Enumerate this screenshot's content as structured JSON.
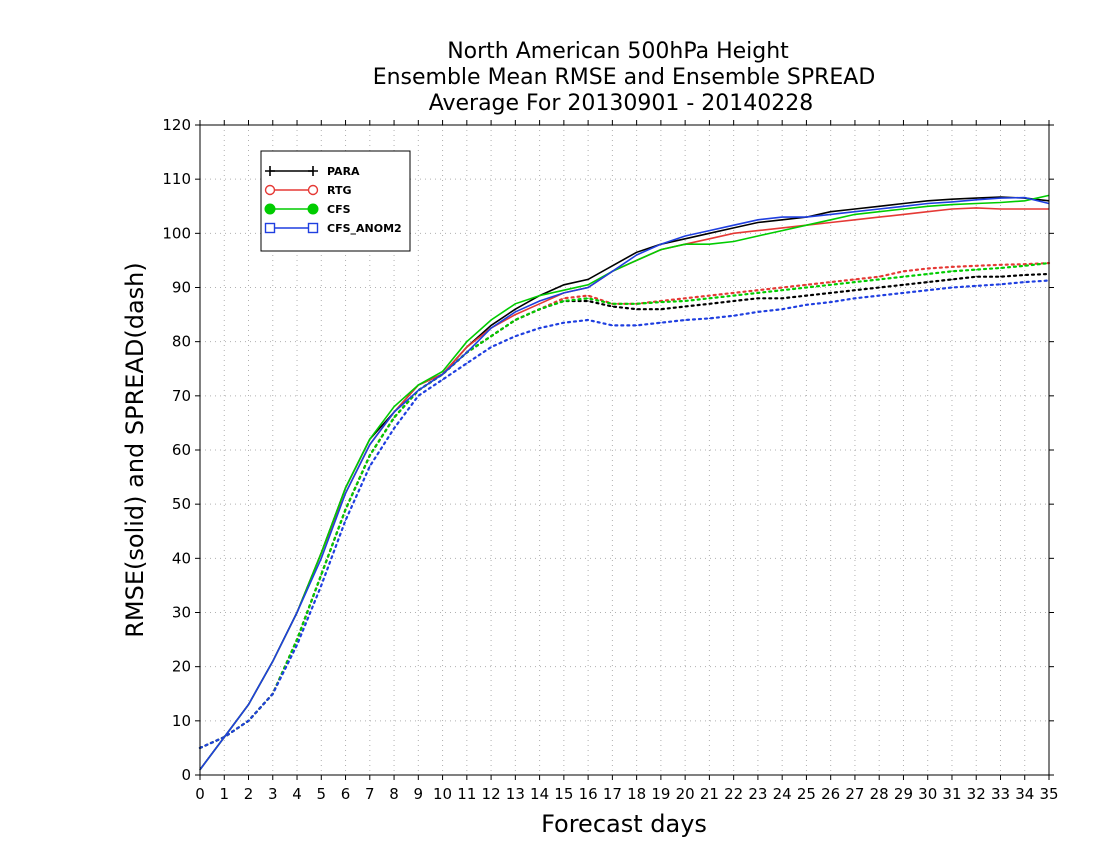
{
  "chart_data": {
    "type": "line",
    "title": [
      "North American 500hPa Height",
      "Ensemble Mean RMSE and Ensemble SPREAD",
      "Average For 20130901 - 20140228"
    ],
    "xlabel": "Forecast days",
    "ylabel": "RMSE(solid) and SPREAD(dash)",
    "xlim": [
      0,
      35
    ],
    "ylim": [
      0,
      120
    ],
    "xticks": [
      0,
      1,
      2,
      3,
      4,
      5,
      6,
      7,
      8,
      9,
      10,
      11,
      12,
      13,
      14,
      15,
      16,
      17,
      18,
      19,
      20,
      21,
      22,
      23,
      24,
      25,
      26,
      27,
      28,
      29,
      30,
      31,
      32,
      33,
      34,
      35
    ],
    "yticks": [
      0,
      10,
      20,
      30,
      40,
      50,
      60,
      70,
      80,
      90,
      100,
      110,
      120
    ],
    "grid": true,
    "legend_position": "top-left",
    "x": [
      0,
      1,
      2,
      3,
      4,
      5,
      6,
      7,
      8,
      9,
      10,
      11,
      12,
      13,
      14,
      15,
      16,
      17,
      18,
      19,
      20,
      21,
      22,
      23,
      24,
      25,
      26,
      27,
      28,
      29,
      30,
      31,
      32,
      33,
      34,
      35
    ],
    "series": [
      {
        "name": "PARA",
        "color": "#000000",
        "marker": "plus",
        "rmse": [
          1,
          7,
          13,
          21,
          30,
          41,
          53,
          62,
          67,
          72,
          74,
          79,
          83,
          86,
          88.5,
          90.5,
          91.5,
          94,
          96.5,
          98,
          99,
          100,
          101,
          102,
          102.5,
          103,
          104,
          104.5,
          105,
          105.5,
          106,
          106.3,
          106.5,
          106.7,
          106.5,
          106
        ],
        "spread": [
          5,
          7,
          10,
          15,
          25,
          37,
          49,
          59,
          66,
          71,
          74,
          78,
          81,
          84,
          86,
          87.5,
          87.5,
          86.5,
          86,
          86,
          86.5,
          87,
          87.5,
          88,
          88,
          88.5,
          89,
          89.5,
          90,
          90.5,
          91,
          91.5,
          92,
          92,
          92.3,
          92.5
        ]
      },
      {
        "name": "RTG",
        "color": "#e53935",
        "marker": "circle-open",
        "rmse": [
          1,
          7,
          13,
          21,
          30,
          41,
          52,
          61,
          67,
          72,
          74,
          79,
          82.5,
          85,
          87,
          89,
          90,
          93,
          95,
          97,
          98,
          99,
          100,
          100.5,
          101,
          101.5,
          102,
          102.5,
          103,
          103.5,
          104,
          104.5,
          104.7,
          104.5,
          104.5,
          104.5
        ],
        "spread": [
          5,
          7,
          10,
          15,
          25,
          37,
          49,
          59,
          66,
          71,
          74,
          78,
          81,
          84,
          86,
          88,
          88.5,
          87,
          87,
          87.5,
          88,
          88.5,
          89,
          89.5,
          90,
          90.5,
          91,
          91.5,
          92,
          93,
          93.5,
          93.8,
          94,
          94.2,
          94.3,
          94.5
        ]
      },
      {
        "name": "CFS",
        "color": "#00cc00",
        "marker": "circle-filled",
        "rmse": [
          1,
          7,
          13,
          21,
          30,
          41,
          53,
          62,
          68,
          72,
          74.5,
          80,
          84,
          87,
          88.5,
          89.5,
          90.5,
          93,
          95,
          97,
          98,
          98,
          98.5,
          99.5,
          100.5,
          101.5,
          102.5,
          103.5,
          104,
          104.5,
          105,
          105.3,
          105.5,
          105.7,
          106,
          107
        ],
        "spread": [
          5,
          7,
          10,
          15,
          25,
          37,
          49,
          59,
          66,
          71,
          74,
          78,
          81,
          84,
          86,
          87.5,
          88,
          87,
          87,
          87.3,
          87.5,
          88,
          88.5,
          89,
          89.5,
          90,
          90.5,
          91,
          91.5,
          92,
          92.5,
          93,
          93.3,
          93.6,
          94,
          94.5
        ]
      },
      {
        "name": "CFS_ANOM2",
        "color": "#1f3fe0",
        "marker": "square-open",
        "rmse": [
          1,
          7,
          13,
          21,
          30,
          40,
          52,
          61,
          67,
          71,
          74,
          78,
          82.5,
          85.5,
          87.5,
          89,
          90,
          93,
          96,
          98,
          99.5,
          100.5,
          101.5,
          102.5,
          103,
          103,
          103.5,
          104,
          104.5,
          105,
          105.5,
          105.8,
          106.2,
          106.5,
          106.6,
          105.5
        ],
        "spread": [
          5,
          7,
          10,
          15,
          24,
          35,
          47,
          57,
          64,
          70,
          73,
          76,
          79,
          81,
          82.5,
          83.5,
          84,
          83,
          83,
          83.5,
          84,
          84.3,
          84.8,
          85.5,
          86,
          86.8,
          87.3,
          88,
          88.5,
          89,
          89.5,
          90,
          90.3,
          90.6,
          91,
          91.3
        ]
      }
    ]
  }
}
